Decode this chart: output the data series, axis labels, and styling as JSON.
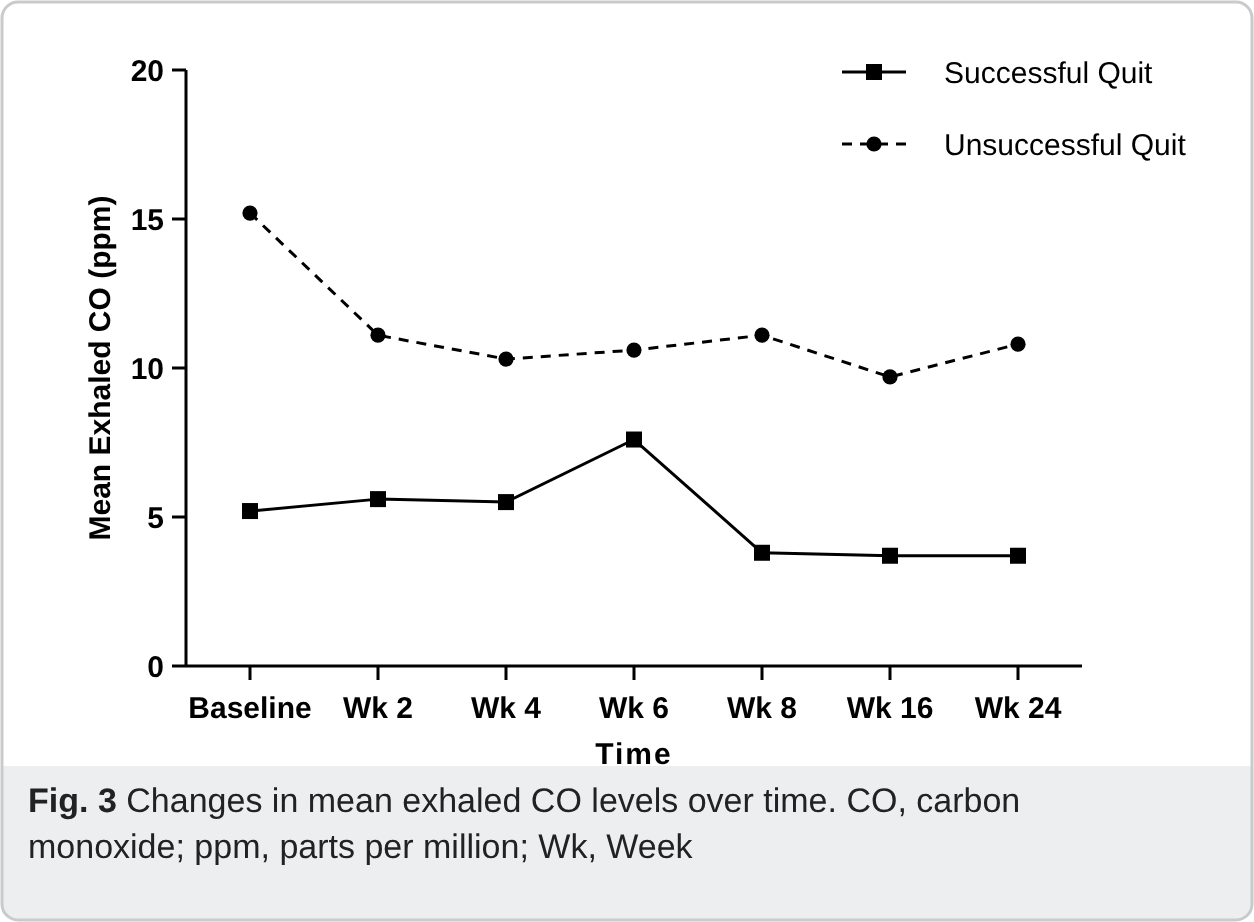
{
  "chart_data": {
    "type": "line",
    "xlabel": "Time",
    "ylabel": "Mean Exhaled CO (ppm)",
    "categories": [
      "Baseline",
      "Wk 2",
      "Wk 4",
      "Wk 6",
      "Wk 8",
      "Wk 16",
      "Wk 24"
    ],
    "series": [
      {
        "name": "Successful Quit",
        "color": "#000000",
        "marker": "square",
        "line_style": "solid",
        "values": [
          5.2,
          5.6,
          5.5,
          7.6,
          3.8,
          3.7,
          3.7
        ]
      },
      {
        "name": "Unsuccessful Quit",
        "color": "#000000",
        "marker": "circle",
        "line_style": "dashed",
        "values": [
          15.2,
          11.1,
          10.3,
          10.6,
          11.1,
          9.7,
          10.8
        ]
      }
    ],
    "ylim": [
      0,
      20
    ],
    "yticks": [
      0,
      5,
      10,
      15,
      20
    ],
    "grid": false,
    "legend": "top right",
    "annotations": [
      "Fig. 3  Changes in mean exhaled CO levels over time. CO, carbon monoxide; ppm, parts per million; Wk, Week"
    ]
  }
}
